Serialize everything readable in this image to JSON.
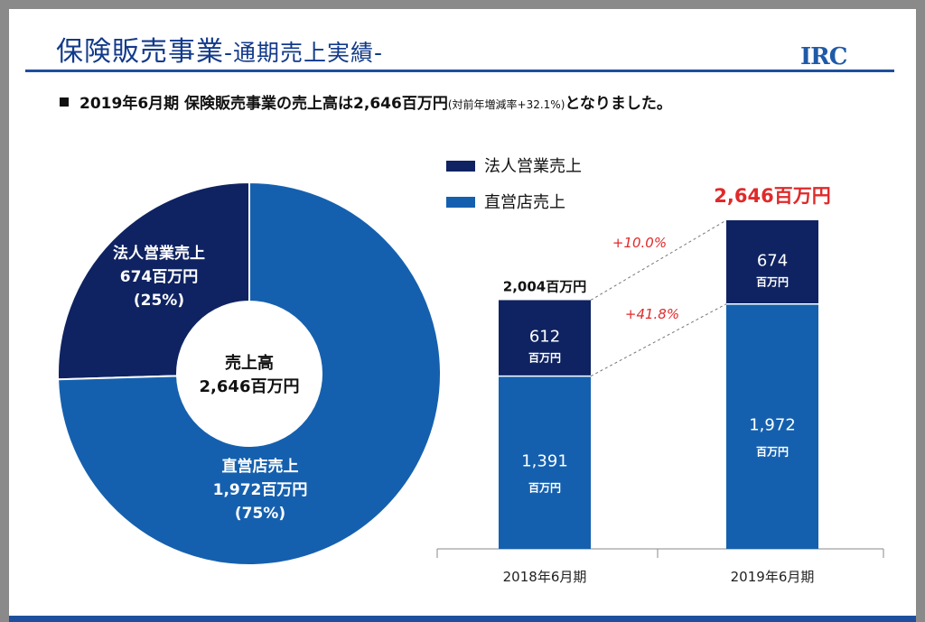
{
  "header": {
    "title_main": "保険販売事業",
    "title_sub": "-通期売上実績-",
    "logo": "IRC"
  },
  "summary": {
    "main_text": "2019年6月期 保険販売事業の売上高は2,646百万円",
    "note": "(対前年増減率+32.1%)",
    "suffix": "となりました。"
  },
  "colors": {
    "corporate": "#0f2362",
    "direct": "#1560ae",
    "accent_red": "#e02a2a",
    "brand_blue": "#1e4f9c"
  },
  "chart_data": [
    {
      "type": "pie",
      "variant": "donut",
      "center_label": [
        "売上高",
        "2,646百万円"
      ],
      "slices": [
        {
          "name": "法人営業売上",
          "value": 674,
          "value_label": "674百万円",
          "percent_label": "(25%)"
        },
        {
          "name": "直営店売上",
          "value": 1972,
          "value_label": "1,972百万円",
          "percent_label": "(75%)"
        }
      ]
    },
    {
      "type": "bar",
      "stacked": true,
      "categories": [
        "2018年6月期",
        "2019年6月期"
      ],
      "series": [
        {
          "name": "直営店売上",
          "values": [
            1391,
            1972
          ],
          "labels": [
            "1,391",
            "1,972"
          ]
        },
        {
          "name": "法人営業売上",
          "values": [
            612,
            674
          ],
          "labels": [
            "612",
            "674"
          ]
        }
      ],
      "unit": "百万円",
      "totals": [
        "2,004百万円",
        "2,646百万円"
      ],
      "annotations": [
        {
          "text": "+10.0%",
          "series": "法人営業売上"
        },
        {
          "text": "+41.8%",
          "series": "直営店売上"
        }
      ],
      "legend_position": "top-left",
      "ylim": [
        0,
        2646
      ],
      "grid": false
    }
  ]
}
